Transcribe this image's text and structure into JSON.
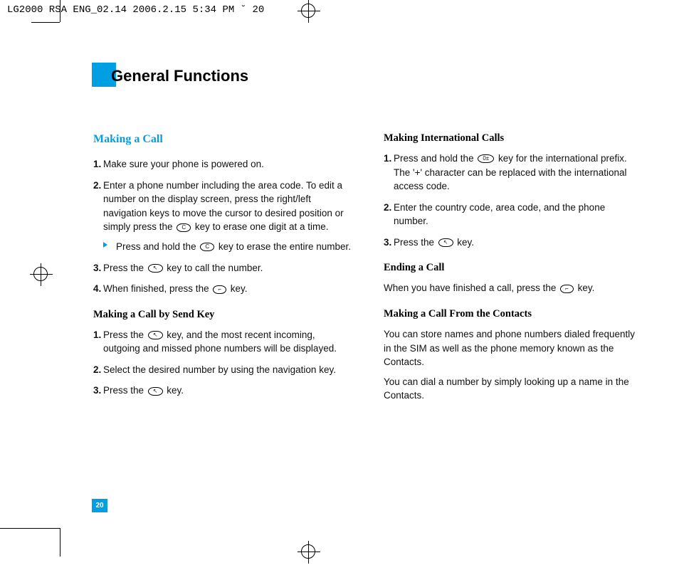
{
  "meta_header": "LG2000 RSA ENG_02.14  2006.2.15 5:34 PM  ˘     20",
  "chapter_title": "General Functions",
  "page_number": "20",
  "left_col": {
    "main_heading": "Making a Call",
    "steps_a": [
      "Make sure your phone is powered on.",
      "Enter a phone number including the area code. To edit a number on the display screen, press the right/left navigation keys to move the cursor to desired position or simply press the",
      "key to erase one digit at a time."
    ],
    "sub_a_pre": "Press and hold the",
    "sub_a_post": "key to erase the entire number.",
    "step3_pre": "Press the",
    "step3_post": "key to call the number.",
    "step4_pre": "When finished, press the",
    "step4_post": "key.",
    "sub_heading": "Making a Call by Send Key",
    "b1_pre": "Press the",
    "b1_post": "key, and the most recent incoming, outgoing and missed phone numbers will be displayed.",
    "b2": "Select the desired number by using the navigation key.",
    "b3_pre": "Press the",
    "b3_post": "key."
  },
  "right_col": {
    "h1": "Making International Calls",
    "r1_pre": "Press and hold the",
    "r1_post": "key for the international prefix. The '+' character can be replaced with the international access code.",
    "r2": "Enter the country code, area code, and the phone number.",
    "r3_pre": "Press the",
    "r3_post": "key.",
    "h2": "Ending a Call",
    "end_pre": "When you have finished a call, press the",
    "end_post": "key.",
    "h3": "Making a Call From the Contacts",
    "contacts_p1": "You can store names and phone numbers dialed frequently in the SIM as well as the phone memory known as the Contacts.",
    "contacts_p2": "You can dial a number by simply looking up a name in the Contacts."
  },
  "icons": {
    "c_key": "C",
    "send_key": "↖",
    "end_key": "⌐",
    "zero_key": "0±"
  },
  "colors": {
    "accent": "#009fe3"
  }
}
